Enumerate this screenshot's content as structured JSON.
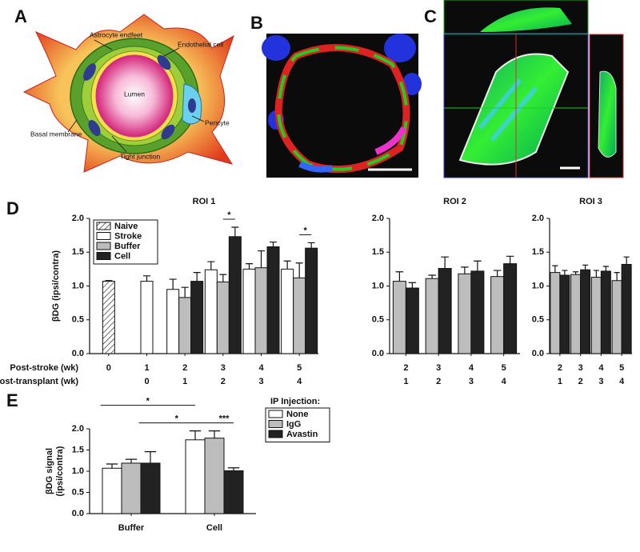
{
  "panels": [
    "A",
    "B",
    "C",
    "D",
    "E"
  ],
  "diagram": {
    "labels": [
      "Astrocyte endfeet",
      "Endothelial cell",
      "Lumen",
      "Pericyte",
      "Basal membrane",
      "Tight junction"
    ]
  },
  "chart_data": [
    {
      "type": "bar",
      "title": "ROI 1",
      "ylabel": "βDG (ipsi/contra)",
      "row_labels": [
        "Post-stroke (wk)",
        "Post-transplant (wk)"
      ],
      "categories": [
        "0",
        "1",
        "2",
        "3",
        "4",
        "5"
      ],
      "categories2": [
        null,
        "0",
        "1",
        "2",
        "3",
        "4"
      ],
      "series": [
        {
          "name": "Naive",
          "color": "#ffffff",
          "pattern": "hatch",
          "values": [
            1.07,
            null,
            null,
            null,
            null,
            null
          ],
          "errors": [
            0.01,
            null,
            null,
            null,
            null,
            null
          ]
        },
        {
          "name": "Stroke",
          "color": "#ffffff",
          "values": [
            null,
            1.07,
            0.95,
            1.24,
            1.25,
            1.25
          ],
          "errors": [
            null,
            0.08,
            0.15,
            0.12,
            0.08,
            0.12
          ]
        },
        {
          "name": "Buffer",
          "color": "#bdbdbd",
          "values": [
            null,
            null,
            0.83,
            1.06,
            1.27,
            1.12
          ],
          "errors": [
            null,
            null,
            0.15,
            0.11,
            0.25,
            0.22
          ]
        },
        {
          "name": "Cell",
          "color": "#222222",
          "values": [
            null,
            null,
            1.07,
            1.73,
            1.58,
            1.56
          ],
          "errors": [
            null,
            null,
            0.13,
            0.14,
            0.07,
            0.08
          ]
        }
      ],
      "ylim": [
        0,
        2
      ],
      "yticks": [
        {
          "value": 0,
          "label": "0.0"
        },
        {
          "value": 0.5,
          "label": "0.5"
        },
        {
          "value": 1,
          "label": "1.0"
        },
        {
          "value": 1.5,
          "label": "1.5"
        },
        {
          "value": 2,
          "label": "2.0"
        }
      ],
      "legend": "upper left",
      "annotations": [
        {
          "text": "*",
          "from": [
            "3",
            "Buffer"
          ],
          "to": [
            "3",
            "Cell"
          ]
        },
        {
          "text": "*",
          "from": [
            "5",
            "Buffer"
          ],
          "to": [
            "5",
            "Cell"
          ]
        }
      ]
    },
    {
      "type": "bar",
      "title": "ROI 2",
      "categories": [
        "2",
        "3",
        "4",
        "5"
      ],
      "categories2": [
        "1",
        "2",
        "3",
        "4"
      ],
      "series": [
        {
          "name": "Buffer",
          "color": "#bdbdbd",
          "values": [
            1.07,
            1.11,
            1.18,
            1.14
          ],
          "errors": [
            0.14,
            0.05,
            0.1,
            0.09
          ]
        },
        {
          "name": "Cell",
          "color": "#222222",
          "values": [
            0.97,
            1.26,
            1.22,
            1.33
          ],
          "errors": [
            0.08,
            0.17,
            0.15,
            0.11
          ]
        }
      ],
      "ylim": [
        0,
        2
      ],
      "yticks": [
        {
          "value": 0,
          "label": "0.0"
        },
        {
          "value": 0.5,
          "label": "0.5"
        },
        {
          "value": 1,
          "label": "1.0"
        },
        {
          "value": 1.5,
          "label": "1.5"
        },
        {
          "value": 2,
          "label": "2.0"
        }
      ]
    },
    {
      "type": "bar",
      "title": "ROI 3",
      "categories": [
        "2",
        "3",
        "4",
        "5"
      ],
      "categories2": [
        "1",
        "2",
        "3",
        "4"
      ],
      "series": [
        {
          "name": "Buffer",
          "color": "#bdbdbd",
          "values": [
            1.2,
            1.17,
            1.13,
            1.08
          ],
          "errors": [
            0.1,
            0.04,
            0.1,
            0.12
          ]
        },
        {
          "name": "Cell",
          "color": "#222222",
          "values": [
            1.16,
            1.24,
            1.22,
            1.32
          ],
          "errors": [
            0.07,
            0.07,
            0.07,
            0.11
          ]
        }
      ],
      "ylim": [
        0,
        2
      ],
      "yticks": [
        {
          "value": 0,
          "label": "0.0"
        },
        {
          "value": 0.5,
          "label": "0.5"
        },
        {
          "value": 1,
          "label": "1.0"
        },
        {
          "value": 1.5,
          "label": "1.5"
        },
        {
          "value": 2,
          "label": "2.0"
        }
      ]
    },
    {
      "type": "bar",
      "ylabel": [
        "βDG signal",
        "(ipsi/contra)"
      ],
      "categories": [
        "Buffer",
        "Cell"
      ],
      "series": [
        {
          "name": "None",
          "color": "#ffffff",
          "values": [
            1.07,
            1.74
          ],
          "errors": [
            0.1,
            0.21
          ]
        },
        {
          "name": "IgG",
          "color": "#bdbdbd",
          "values": [
            1.19,
            1.78
          ],
          "errors": [
            0.09,
            0.17
          ]
        },
        {
          "name": "Avastin",
          "color": "#222222",
          "values": [
            1.19,
            1.01
          ],
          "errors": [
            0.27,
            0.07
          ]
        }
      ],
      "ylim": [
        0,
        2
      ],
      "yticks": [
        {
          "value": 0,
          "label": "0.0"
        },
        {
          "value": 0.5,
          "label": "0.5"
        },
        {
          "value": 1,
          "label": "1.0"
        },
        {
          "value": 1.5,
          "label": "1.5"
        },
        {
          "value": 2,
          "label": "2.0"
        }
      ],
      "legend": "right",
      "legend_title": "IP Injection:",
      "annotations": [
        {
          "text": "*",
          "from": [
            "Buffer",
            "None"
          ],
          "to": [
            "Cell",
            "None"
          ]
        },
        {
          "text": "*",
          "from": [
            "Buffer",
            "Avastin"
          ],
          "to": [
            "Cell",
            "IgG"
          ]
        },
        {
          "text": "***",
          "from": [
            "Cell",
            "IgG"
          ],
          "to": [
            "Cell",
            "Avastin"
          ]
        }
      ]
    }
  ]
}
